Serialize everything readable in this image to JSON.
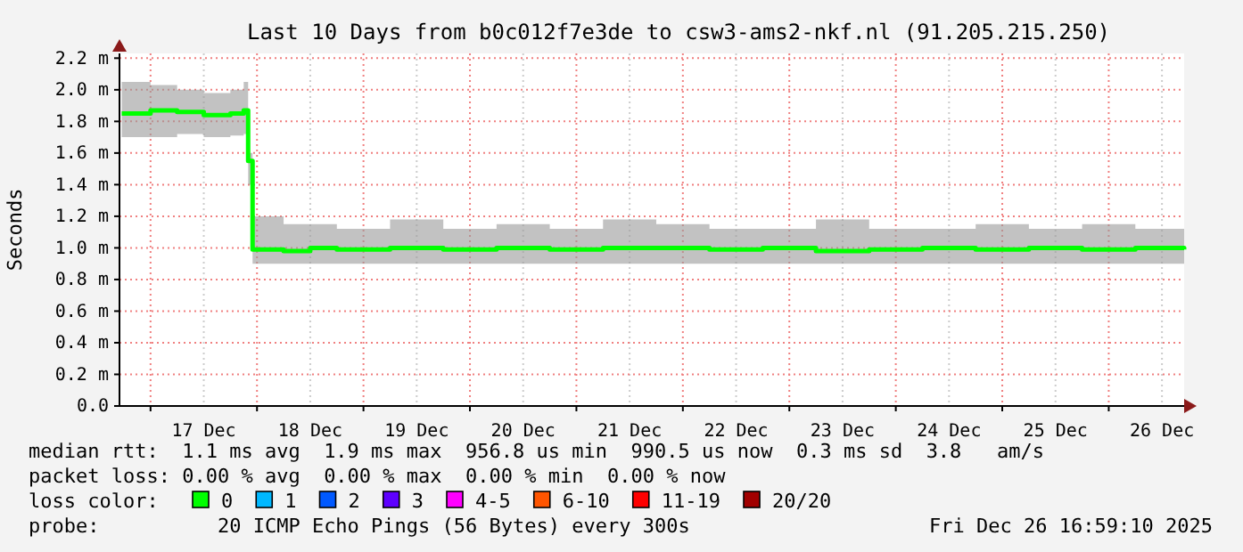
{
  "chart_data": {
    "type": "line",
    "title": "Last 10 Days from b0c012f7e3de to csw3-ams2-nkf.nl (91.205.215.250)",
    "ylabel": "Seconds",
    "legend_title": "loss color:",
    "legend": "bottom",
    "grid": true,
    "xlim": [
      "2025-12-16T17:00",
      "2025-12-26T17:00"
    ],
    "xticks": [
      {
        "value": "2025-12-17T00:00",
        "label": null
      },
      {
        "value": "2025-12-17T12:00",
        "label": "17 Dec"
      },
      {
        "value": "2025-12-18T00:00",
        "label": null
      },
      {
        "value": "2025-12-18T12:00",
        "label": "18 Dec"
      },
      {
        "value": "2025-12-19T00:00",
        "label": null
      },
      {
        "value": "2025-12-19T12:00",
        "label": "19 Dec"
      },
      {
        "value": "2025-12-20T00:00",
        "label": null
      },
      {
        "value": "2025-12-20T12:00",
        "label": "20 Dec"
      },
      {
        "value": "2025-12-21T00:00",
        "label": null
      },
      {
        "value": "2025-12-21T12:00",
        "label": "21 Dec"
      },
      {
        "value": "2025-12-22T00:00",
        "label": null
      },
      {
        "value": "2025-12-22T12:00",
        "label": "22 Dec"
      },
      {
        "value": "2025-12-23T00:00",
        "label": null
      },
      {
        "value": "2025-12-23T12:00",
        "label": "23 Dec"
      },
      {
        "value": "2025-12-24T00:00",
        "label": null
      },
      {
        "value": "2025-12-24T12:00",
        "label": "24 Dec"
      },
      {
        "value": "2025-12-25T00:00",
        "label": null
      },
      {
        "value": "2025-12-25T12:00",
        "label": "25 Dec"
      },
      {
        "value": "2025-12-26T00:00",
        "label": null
      },
      {
        "value": "2025-12-26T12:00",
        "label": "26 Dec"
      }
    ],
    "ylim": [
      0,
      2.23
    ],
    "yticks": [
      {
        "value": 0,
        "label": "0.0"
      },
      {
        "value": 0.2,
        "label": "0.2 m"
      },
      {
        "value": 0.4,
        "label": "0.4 m"
      },
      {
        "value": 0.6,
        "label": "0.6 m"
      },
      {
        "value": 0.8,
        "label": "0.8 m"
      },
      {
        "value": 1.0,
        "label": "1.0 m"
      },
      {
        "value": 1.2,
        "label": "1.2 m"
      },
      {
        "value": 1.4,
        "label": "1.4 m"
      },
      {
        "value": 1.6,
        "label": "1.6 m"
      },
      {
        "value": 1.8,
        "label": "1.8 m"
      },
      {
        "value": 2.0,
        "label": "2.0 m"
      },
      {
        "value": 2.2,
        "label": "2.2 m"
      }
    ],
    "x": [
      "2025-12-16T17:30",
      "2025-12-17T00:00",
      "2025-12-17T06:00",
      "2025-12-17T12:00",
      "2025-12-17T18:00",
      "2025-12-17T21:00",
      "2025-12-17T22:00",
      "2025-12-17T23:00",
      "2025-12-18T06:00",
      "2025-12-18T12:00",
      "2025-12-18T18:00",
      "2025-12-19T06:00",
      "2025-12-19T18:00",
      "2025-12-20T06:00",
      "2025-12-20T18:00",
      "2025-12-21T06:00",
      "2025-12-21T18:00",
      "2025-12-22T06:00",
      "2025-12-22T18:00",
      "2025-12-23T06:00",
      "2025-12-23T18:00",
      "2025-12-24T06:00",
      "2025-12-24T18:00",
      "2025-12-25T06:00",
      "2025-12-25T18:00",
      "2025-12-26T06:00",
      "2025-12-26T17:00"
    ],
    "series": [
      {
        "name": "0",
        "color": "#00ff00",
        "values": [
          1.85,
          1.87,
          1.86,
          1.84,
          1.85,
          1.87,
          1.55,
          0.99,
          0.98,
          1.0,
          0.99,
          1.0,
          0.99,
          1.0,
          0.99,
          1.0,
          1.0,
          0.99,
          1.0,
          0.98,
          0.99,
          1.0,
          0.99,
          1.0,
          0.99,
          1.0,
          0.99
        ],
        "lower": [
          1.7,
          1.7,
          1.72,
          1.7,
          1.71,
          1.72,
          1.4,
          0.9,
          0.9,
          0.9,
          0.9,
          0.9,
          0.9,
          0.9,
          0.9,
          0.9,
          0.9,
          0.9,
          0.9,
          0.9,
          0.9,
          0.9,
          0.9,
          0.9,
          0.9,
          0.9,
          0.9
        ],
        "upper": [
          2.05,
          2.03,
          2.0,
          1.98,
          2.0,
          2.05,
          1.6,
          1.2,
          1.15,
          1.15,
          1.12,
          1.18,
          1.12,
          1.15,
          1.12,
          1.18,
          1.15,
          1.12,
          1.12,
          1.18,
          1.12,
          1.12,
          1.15,
          1.12,
          1.15,
          1.12,
          1.12
        ]
      },
      {
        "name": "1",
        "color": "#00b8ff",
        "values": [
          null,
          null,
          null,
          null,
          null,
          null,
          null,
          null,
          null,
          null,
          null,
          null,
          null,
          null,
          null,
          null,
          null,
          null,
          null,
          null,
          null,
          null,
          null,
          null,
          null,
          null,
          null
        ]
      },
      {
        "name": "2",
        "color": "#0059ff",
        "values": [
          null,
          null,
          null,
          null,
          null,
          null,
          null,
          null,
          null,
          null,
          null,
          null,
          null,
          null,
          null,
          null,
          null,
          null,
          null,
          null,
          null,
          null,
          null,
          null,
          null,
          null,
          null
        ]
      },
      {
        "name": "3",
        "color": "#5e00ff",
        "values": [
          null,
          null,
          null,
          null,
          null,
          null,
          null,
          null,
          null,
          null,
          null,
          null,
          null,
          null,
          null,
          null,
          null,
          null,
          null,
          null,
          null,
          null,
          null,
          null,
          null,
          null,
          null
        ]
      },
      {
        "name": "4-5",
        "color": "#ff00ff",
        "values": [
          null,
          null,
          null,
          null,
          null,
          null,
          null,
          null,
          null,
          null,
          null,
          null,
          null,
          null,
          null,
          null,
          null,
          null,
          null,
          null,
          null,
          null,
          null,
          null,
          null,
          null,
          null
        ]
      },
      {
        "name": "6-10",
        "color": "#ff5500",
        "values": [
          null,
          null,
          null,
          null,
          null,
          null,
          null,
          null,
          null,
          null,
          null,
          null,
          null,
          null,
          null,
          null,
          null,
          null,
          null,
          null,
          null,
          null,
          null,
          null,
          null,
          null,
          null
        ]
      },
      {
        "name": "11-19",
        "color": "#ff0000",
        "values": [
          null,
          null,
          null,
          null,
          null,
          null,
          null,
          null,
          null,
          null,
          null,
          null,
          null,
          null,
          null,
          null,
          null,
          null,
          null,
          null,
          null,
          null,
          null,
          null,
          null,
          null,
          null
        ]
      },
      {
        "name": "20/20",
        "color": "#a10000",
        "values": [
          null,
          null,
          null,
          null,
          null,
          null,
          null,
          null,
          null,
          null,
          null,
          null,
          null,
          null,
          null,
          null,
          null,
          null,
          null,
          null,
          null,
          null,
          null,
          null,
          null,
          null,
          null
        ]
      }
    ],
    "annotations": [
      "median rtt:  1.1 ms avg  1.9 ms max  956.8 us min  990.5 us now  0.3 ms sd  3.8   am/s",
      "packet loss: 0.00 % avg  0.00 % max  0.00 % min  0.00 % now",
      "probe:          20 ICMP Echo Pings (56 Bytes) every 300s",
      "Fri Dec 26 16:59:10 2025"
    ]
  }
}
